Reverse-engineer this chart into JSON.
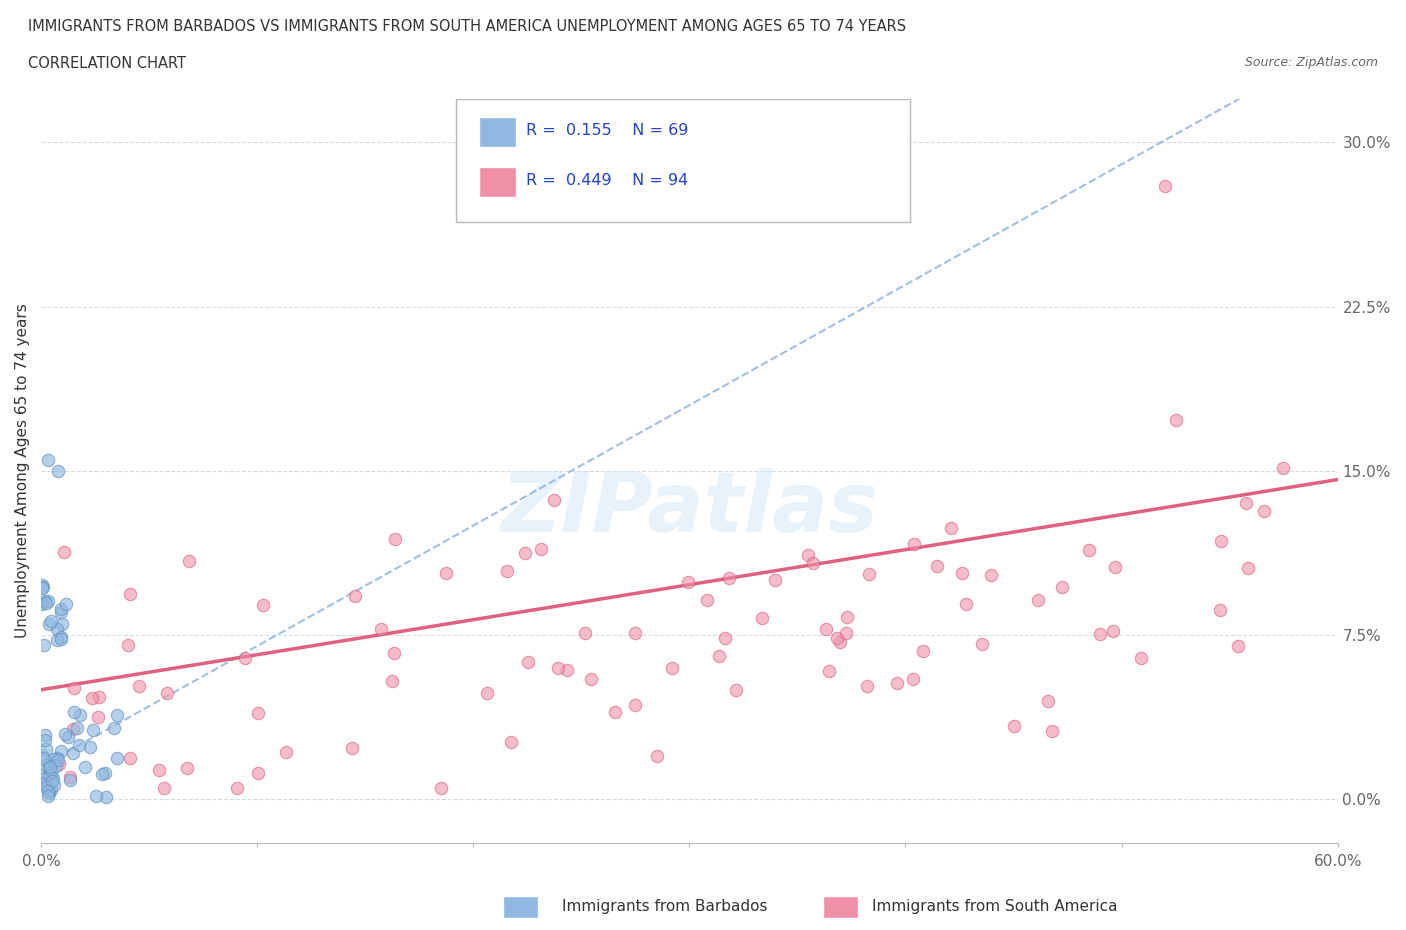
{
  "title_line1": "IMMIGRANTS FROM BARBADOS VS IMMIGRANTS FROM SOUTH AMERICA UNEMPLOYMENT AMONG AGES 65 TO 74 YEARS",
  "title_line2": "CORRELATION CHART",
  "source": "Source: ZipAtlas.com",
  "ylabel": "Unemployment Among Ages 65 to 74 years",
  "ytick_values": [
    0.0,
    7.5,
    15.0,
    22.5,
    30.0
  ],
  "xlim": [
    0.0,
    60.0
  ],
  "ylim": [
    -2.0,
    32.0
  ],
  "watermark": "ZIPatlas",
  "R_barbados": 0.155,
  "N_barbados": 69,
  "R_sa": 0.449,
  "N_sa": 94,
  "barbados_color": "#90b8e0",
  "barbados_edge": "#6090c0",
  "sa_color": "#f090a8",
  "sa_edge": "#d06080",
  "trend_barbados_color": "#8aaedd",
  "trend_sa_color": "#e06080",
  "grid_color": "#d0d8e8",
  "background_color": "#ffffff",
  "legend_box_color": "#ffffff",
  "legend_border_color": "#cccccc",
  "text_color": "#333333",
  "tick_color": "#666666",
  "axis_color": "#bbbbbb"
}
